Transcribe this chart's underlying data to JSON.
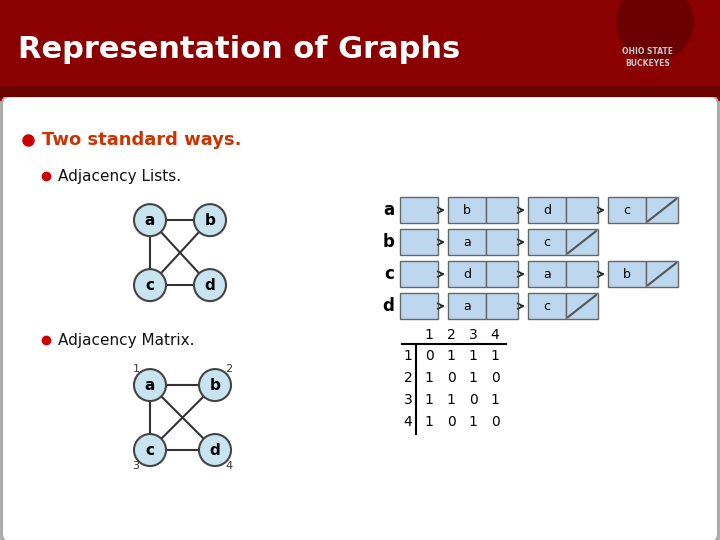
{
  "title": "Representation of Graphs",
  "title_bg_color": "#8B0000",
  "title_text_color": "#FFFFFF",
  "slide_bg_color": "#FFFFFF",
  "outer_bg_color": "#B0B0B0",
  "bullet_color_1": "#CC3300",
  "bullet_color_2": "#CC0000",
  "body_text_color": "#000000",
  "node_fill_color": "#C8E4F0",
  "node_edge_color": "#444444",
  "list_cell_color": "#BDD7EE",
  "bullet1": "Two standard ways.",
  "bullet2_adj_list": "Adjacency Lists.",
  "bullet2_adj_matrix": "Adjacency Matrix.",
  "graph_nodes": [
    "a",
    "b",
    "c",
    "d"
  ],
  "graph_edges": [
    [
      "a",
      "b"
    ],
    [
      "a",
      "c"
    ],
    [
      "a",
      "d"
    ],
    [
      "b",
      "c"
    ],
    [
      "c",
      "d"
    ]
  ],
  "adj_list": {
    "a": [
      "b",
      "d",
      "c"
    ],
    "b": [
      "a",
      "c"
    ],
    "c": [
      "d",
      "a",
      "b"
    ],
    "d": [
      "a",
      "c"
    ]
  },
  "matrix_header": [
    "1",
    "2",
    "3",
    "4"
  ],
  "matrix_rows": [
    [
      "1",
      "0",
      "1",
      "1",
      "1"
    ],
    [
      "2",
      "1",
      "0",
      "1",
      "0"
    ],
    [
      "3",
      "1",
      "1",
      "0",
      "1"
    ],
    [
      "4",
      "1",
      "0",
      "1",
      "0"
    ]
  ],
  "node_labels_numbered": {
    "a": "1",
    "b": "2",
    "c": "3",
    "d": "4"
  }
}
